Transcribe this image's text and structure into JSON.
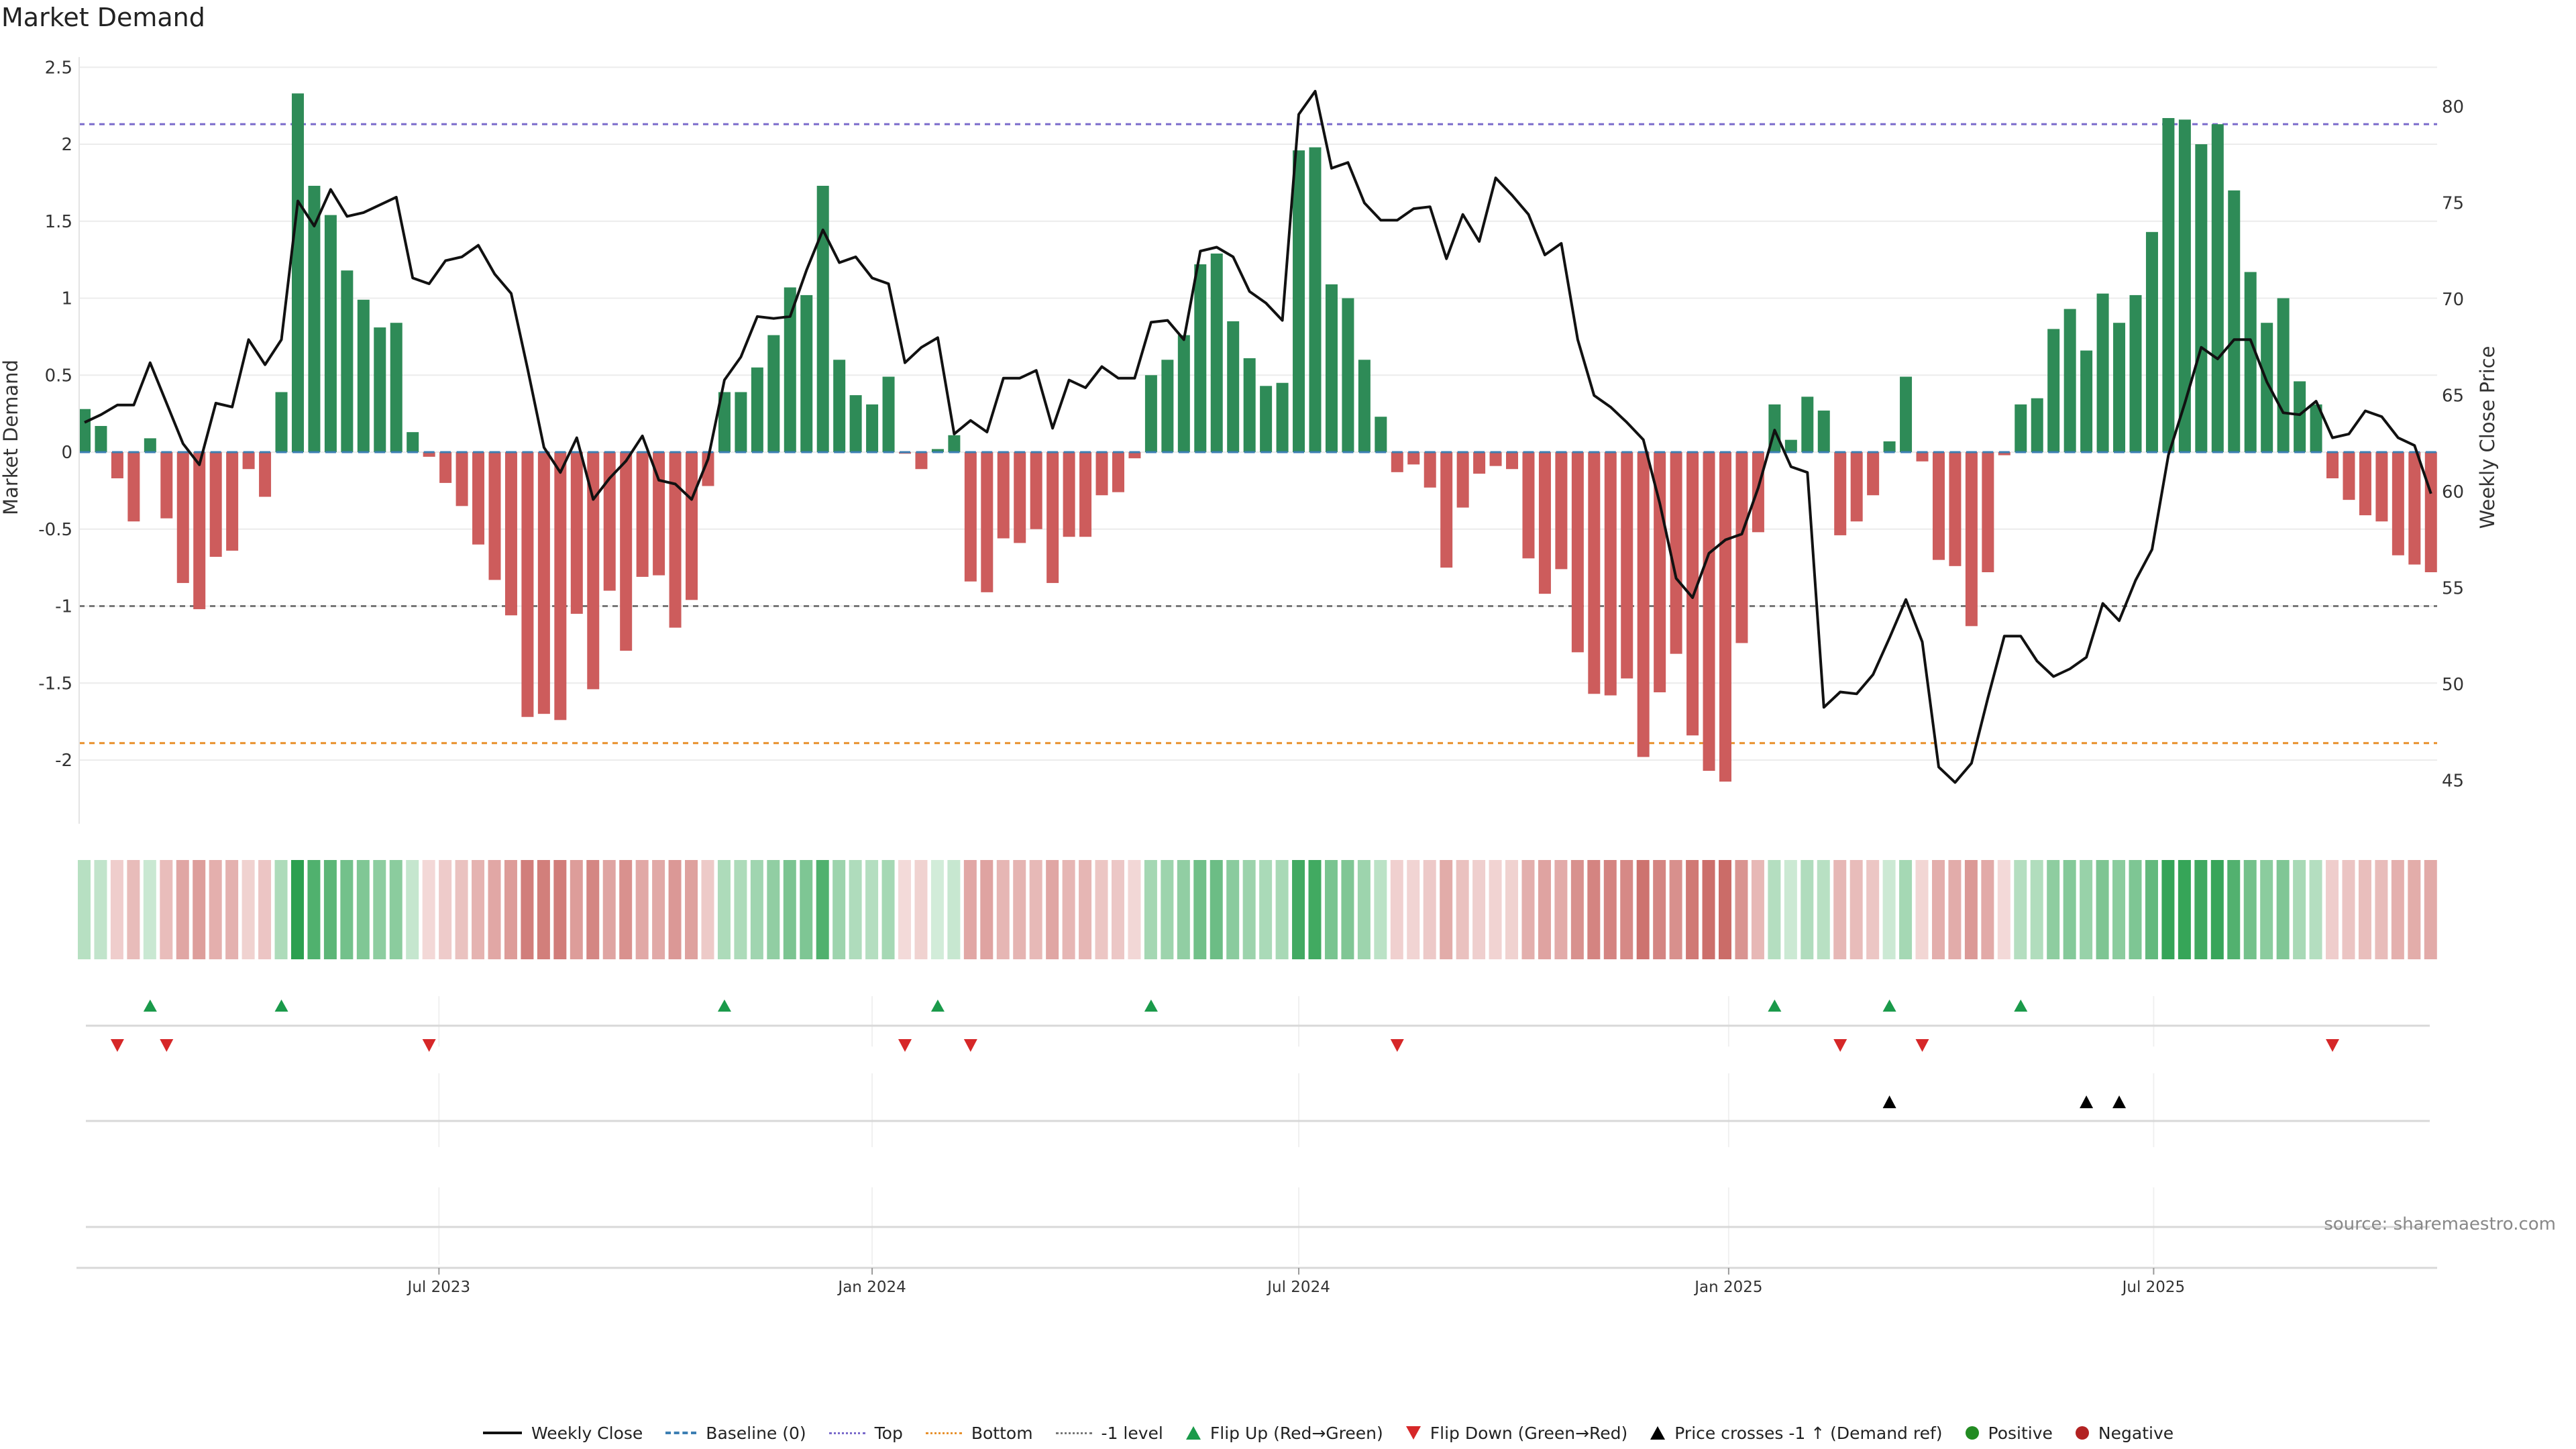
{
  "chart_data": {
    "type": "bar",
    "title": "Market Demand",
    "ylabel": "Market Demand",
    "ylabel_right": "Weekly Close Price",
    "ylim": [
      -2.4,
      2.62
    ],
    "ylim_right": [
      40.5,
      84.7
    ],
    "yticks": [
      "2.5",
      "2",
      "1.5",
      "1",
      "0.5",
      "0",
      "-0.5",
      "-1",
      "-1.5",
      "-2"
    ],
    "yticks_right": [
      "80",
      "75",
      "70",
      "65",
      "60",
      "55",
      "50",
      "45"
    ],
    "x_unit": "week index (weekly, ~Feb 2023 to Oct 2025)",
    "xticks": [
      {
        "label": "Jul 2023",
        "week": 21.6
      },
      {
        "label": "Jan 2024",
        "week": 48.0
      },
      {
        "label": "Jul 2024",
        "week": 74.0
      },
      {
        "label": "Jan 2025",
        "week": 100.2
      },
      {
        "label": "Jul 2025",
        "week": 126.1
      }
    ],
    "grid": true,
    "reference_levels": {
      "top": 2.13,
      "bottom": -1.89,
      "minus_one": -1.0,
      "baseline": 0
    },
    "series": [
      {
        "name": "Market Demand",
        "type": "bar",
        "values": [
          0.28,
          0.17,
          -0.17,
          -0.45,
          0.09,
          -0.43,
          -0.85,
          -1.02,
          -0.68,
          -0.64,
          -0.11,
          -0.29,
          0.39,
          2.33,
          1.73,
          1.54,
          1.18,
          0.99,
          0.81,
          0.84,
          0.13,
          -0.03,
          -0.2,
          -0.35,
          -0.6,
          -0.83,
          -1.06,
          -1.72,
          -1.7,
          -1.74,
          -1.05,
          -1.54,
          -0.9,
          -1.29,
          -0.81,
          -0.8,
          -1.14,
          -0.96,
          -0.22,
          0.39,
          0.39,
          0.55,
          0.76,
          1.07,
          1.02,
          1.73,
          0.6,
          0.37,
          0.31,
          0.49,
          -0.01,
          -0.11,
          0.02,
          0.11,
          -0.84,
          -0.91,
          -0.56,
          -0.59,
          -0.5,
          -0.85,
          -0.55,
          -0.55,
          -0.28,
          -0.26,
          -0.04,
          0.5,
          0.6,
          0.76,
          1.22,
          1.29,
          0.85,
          0.61,
          0.43,
          0.45,
          1.96,
          1.98,
          1.09,
          1.0,
          0.6,
          0.23,
          -0.13,
          -0.08,
          -0.23,
          -0.75,
          -0.36,
          -0.14,
          -0.09,
          -0.11,
          -0.69,
          -0.92,
          -0.76,
          -1.3,
          -1.57,
          -1.58,
          -1.47,
          -1.98,
          -1.56,
          -1.31,
          -1.84,
          -2.07,
          -2.14,
          -1.24,
          -0.52,
          0.31,
          0.08,
          0.36,
          0.27,
          -0.54,
          -0.45,
          -0.28,
          0.07,
          0.49,
          -0.06,
          -0.7,
          -0.74,
          -1.13,
          -0.78,
          -0.02,
          0.31,
          0.35,
          0.8,
          0.93,
          0.66,
          1.03,
          0.84,
          1.02,
          1.43,
          2.17,
          2.16,
          2.0,
          2.13,
          1.7,
          1.17,
          0.84,
          1.0,
          0.46,
          0.31,
          -0.17,
          -0.31,
          -0.41,
          -0.45,
          -0.67,
          -0.73,
          -0.78
        ]
      },
      {
        "name": "Weekly Close",
        "type": "line",
        "axis": "right",
        "values": [
          63.6,
          64.0,
          64.5,
          64.5,
          66.7,
          64.6,
          62.5,
          61.4,
          64.6,
          64.4,
          67.9,
          66.6,
          67.9,
          75.1,
          73.8,
          75.7,
          74.3,
          74.5,
          74.9,
          75.3,
          71.1,
          70.8,
          72.0,
          72.2,
          72.8,
          71.3,
          70.3,
          66.4,
          62.3,
          61.0,
          62.8,
          59.6,
          60.7,
          61.6,
          62.9,
          60.6,
          60.4,
          59.6,
          61.7,
          65.8,
          67.0,
          69.1,
          69.0,
          69.1,
          71.5,
          73.6,
          71.9,
          72.2,
          71.1,
          70.8,
          66.7,
          67.5,
          68.0,
          63.0,
          63.7,
          63.1,
          65.9,
          65.9,
          66.3,
          63.3,
          65.8,
          65.4,
          66.5,
          65.9,
          65.9,
          68.8,
          68.9,
          67.9,
          72.5,
          72.7,
          72.2,
          70.4,
          69.8,
          68.9,
          79.6,
          80.8,
          76.8,
          77.1,
          75.0,
          74.1,
          74.1,
          74.7,
          74.8,
          72.1,
          74.4,
          73.0,
          76.3,
          75.4,
          74.4,
          72.3,
          72.9,
          67.9,
          65.0,
          64.4,
          63.6,
          62.7,
          59.4,
          55.5,
          54.5,
          56.8,
          57.5,
          57.8,
          60.2,
          63.2,
          61.3,
          61.0,
          48.8,
          49.6,
          49.5,
          50.5,
          52.4,
          54.4,
          52.2,
          45.7,
          44.9,
          45.9,
          49.3,
          52.5,
          52.5,
          51.2,
          50.4,
          50.8,
          51.4,
          54.2,
          53.3,
          55.4,
          57.0,
          61.9,
          64.6,
          67.5,
          66.9,
          67.9,
          67.9,
          65.7,
          64.1,
          64.0,
          64.7,
          62.8,
          63.0,
          64.2,
          63.9,
          62.8,
          62.4,
          59.9
        ]
      }
    ],
    "events": {
      "flip_up": [
        4,
        12,
        39,
        52,
        65,
        103,
        110,
        118
      ],
      "flip_down": [
        2,
        5,
        21,
        50,
        54,
        80,
        107,
        112,
        137
      ],
      "price_crosses": [
        110,
        122,
        124
      ]
    },
    "legend_position": "bottom-center",
    "legend": [
      "Weekly Close",
      "Baseline (0)",
      "Top",
      "Bottom",
      "-1 level",
      "Flip Up (Red→Green)",
      "Flip Down (Green→Red)",
      "Price crosses -1 ↑ (Demand ref)",
      "Positive",
      "Negative"
    ]
  },
  "source": "source: sharemaestro.com",
  "colors": {
    "positive": "#2e8b57",
    "negative": "#cd5c5c",
    "line": "#111111",
    "top": "#7a6acb",
    "bottom": "#e8912d",
    "minus_one": "#777777",
    "baseline": "#3d7fb3",
    "flip_up": "#1a9a4a",
    "flip_down": "#d62728",
    "cross": "#000000",
    "legend_positive": "#228b22",
    "legend_negative": "#b22222"
  }
}
